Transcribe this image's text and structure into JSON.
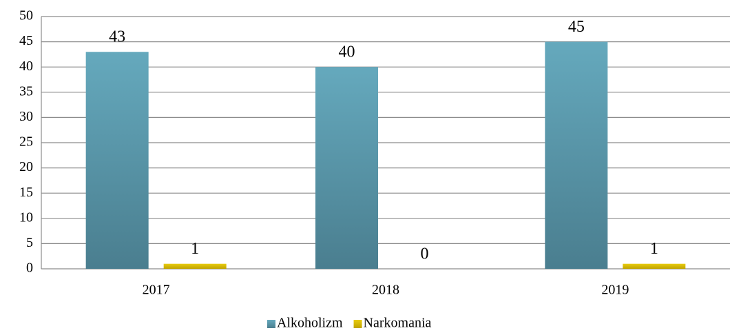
{
  "chart_data": {
    "type": "bar",
    "categories": [
      "2017",
      "2018",
      "2019"
    ],
    "series": [
      {
        "name": "Alkoholizm",
        "color": "#5b9bae",
        "values": [
          43,
          40,
          45
        ]
      },
      {
        "name": "Narkomania",
        "color": "#d4b800",
        "values": [
          1,
          0,
          1
        ]
      }
    ],
    "ylim": [
      0,
      50
    ],
    "yticks": [
      0,
      5,
      10,
      15,
      20,
      25,
      30,
      35,
      40,
      45,
      50
    ],
    "grid": true,
    "legend": "bottom"
  }
}
